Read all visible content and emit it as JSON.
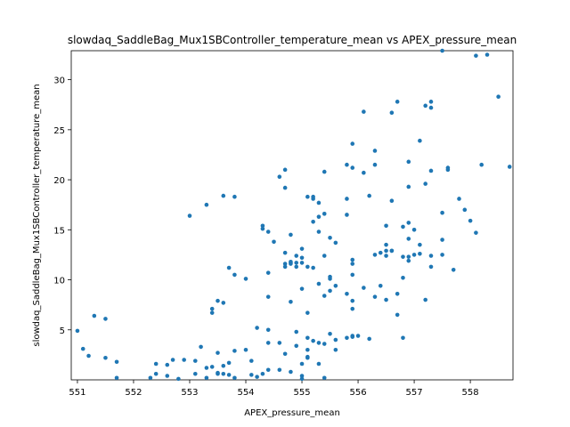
{
  "chart_data": {
    "type": "scatter",
    "title": "slowdaq_SaddleBag_Mux1SBController_temperature_mean vs APEX_pressure_mean",
    "x_label": "APEX_pressure_mean",
    "y_label": "slowdaq_SaddleBag_Mux1SBController_temperature_mean",
    "color": "#1f77b4",
    "xlim": [
      550.89,
      558.76
    ],
    "ylim": [
      0,
      32.9
    ],
    "xticks": [
      551,
      552,
      553,
      554,
      555,
      556,
      557,
      558
    ],
    "yticks": [
      5,
      10,
      15,
      20,
      25,
      30
    ],
    "x": [
      551.0,
      551.1,
      551.2,
      551.3,
      551.5,
      551.5,
      551.7,
      551.7,
      552.3,
      552.4,
      552.4,
      552.6,
      552.6,
      552.7,
      552.8,
      552.9,
      553.0,
      553.1,
      553.1,
      553.2,
      553.3,
      553.3,
      553.3,
      553.4,
      553.4,
      553.5,
      553.4,
      553.5,
      553.5,
      553.5,
      553.6,
      553.6,
      553.6,
      553.6,
      553.7,
      553.7,
      553.7,
      553.8,
      553.8,
      553.8,
      553.8,
      554.0,
      554.0,
      554.1,
      554.1,
      554.2,
      554.2,
      554.3,
      554.3,
      554.3,
      554.4,
      554.4,
      554.4,
      554.4,
      554.4,
      554.4,
      554.5,
      554.6,
      554.6,
      554.6,
      554.7,
      554.7,
      554.7,
      554.7,
      554.7,
      554.7,
      554.8,
      554.8,
      554.8,
      554.8,
      554.8,
      554.8,
      554.9,
      554.9,
      554.9,
      554.9,
      554.9,
      555.0,
      555.0,
      555.0,
      555.0,
      555.0,
      555.0,
      555.0,
      555.1,
      555.1,
      555.1,
      555.1,
      555.1,
      555.1,
      555.1,
      555.2,
      555.2,
      555.2,
      555.2,
      555.2,
      555.3,
      555.3,
      555.3,
      555.3,
      555.3,
      555.3,
      555.4,
      555.4,
      555.4,
      555.4,
      555.4,
      555.4,
      555.5,
      555.5,
      555.5,
      555.5,
      555.5,
      555.6,
      555.6,
      555.6,
      555.6,
      555.8,
      555.8,
      555.8,
      555.8,
      555.8,
      555.9,
      555.9,
      555.9,
      555.9,
      555.9,
      555.9,
      555.9,
      555.9,
      556.0,
      555.9,
      556.1,
      556.1,
      556.1,
      556.2,
      556.2,
      556.3,
      556.3,
      556.3,
      556.3,
      556.4,
      556.4,
      556.5,
      556.5,
      556.5,
      556.5,
      556.5,
      556.6,
      556.6,
      556.6,
      556.6,
      556.7,
      556.7,
      556.7,
      556.8,
      556.8,
      556.8,
      556.8,
      556.9,
      556.9,
      556.9,
      556.9,
      556.9,
      556.9,
      557.0,
      557.0,
      557.1,
      557.1,
      557.1,
      557.2,
      557.2,
      557.2,
      557.3,
      557.3,
      557.3,
      557.3,
      557.3,
      557.5,
      557.5,
      557.5,
      557.5,
      557.6,
      557.6,
      557.7,
      557.8,
      557.9,
      558.0,
      558.1,
      558.1,
      558.2,
      558.3,
      558.5,
      558.7
    ],
    "values": [
      4.9,
      3.1,
      2.4,
      6.4,
      2.2,
      6.1,
      1.8,
      0.2,
      0.2,
      1.6,
      0.6,
      1.5,
      0.4,
      2.0,
      0.1,
      2.0,
      16.4,
      1.9,
      0.6,
      3.3,
      17.5,
      1.2,
      0.2,
      6.7,
      7.1,
      2.7,
      1.3,
      0.7,
      7.9,
      0.6,
      1.4,
      18.4,
      7.7,
      0.6,
      1.7,
      0.5,
      11.2,
      0.2,
      10.5,
      2.9,
      18.3,
      3.0,
      10.1,
      0.5,
      1.9,
      0.3,
      5.2,
      0.6,
      15.4,
      15.1,
      14.8,
      10.7,
      5.0,
      8.3,
      3.7,
      1.0,
      13.8,
      20.3,
      1.0,
      3.7,
      11.6,
      12.7,
      19.2,
      21.0,
      11.3,
      2.6,
      11.6,
      11.7,
      14.5,
      0.8,
      7.8,
      11.8,
      11.3,
      4.8,
      3.4,
      12.4,
      11.7,
      13.1,
      9.1,
      1.6,
      0.4,
      0.1,
      12.2,
      11.7,
      2.2,
      11.3,
      18.3,
      6.7,
      3.0,
      4.2,
      2.3,
      18.1,
      15.8,
      11.2,
      3.9,
      18.3,
      3.7,
      17.7,
      9.6,
      1.6,
      16.3,
      14.8,
      16.6,
      12.4,
      3.6,
      20.8,
      0.2,
      8.4,
      10.1,
      4.6,
      14.2,
      10.3,
      8.9,
      9.4,
      4.0,
      13.7,
      3.0,
      4.2,
      16.5,
      18.1,
      8.6,
      21.5,
      21.2,
      4.3,
      7.1,
      23.6,
      7.9,
      11.6,
      12.0,
      4.4,
      4.4,
      10.5,
      26.8,
      20.7,
      9.2,
      18.4,
      4.1,
      22.9,
      21.5,
      8.3,
      12.5,
      9.4,
      12.7,
      12.9,
      13.5,
      15.4,
      12.4,
      8.0,
      12.9,
      17.9,
      26.7,
      12.9,
      8.6,
      6.5,
      27.8,
      12.3,
      15.3,
      10.2,
      4.2,
      15.7,
      21.8,
      19.3,
      11.9,
      14.1,
      12.3,
      12.5,
      15.0,
      13.5,
      23.9,
      12.6,
      8.0,
      27.4,
      19.6,
      27.8,
      20.9,
      11.3,
      12.4,
      27.2,
      32.9,
      16.7,
      14.0,
      12.5,
      21.2,
      21.0,
      11.0,
      18.1,
      17.0,
      15.9,
      14.7,
      32.4,
      21.5,
      32.5,
      28.3,
      21.3
    ]
  }
}
